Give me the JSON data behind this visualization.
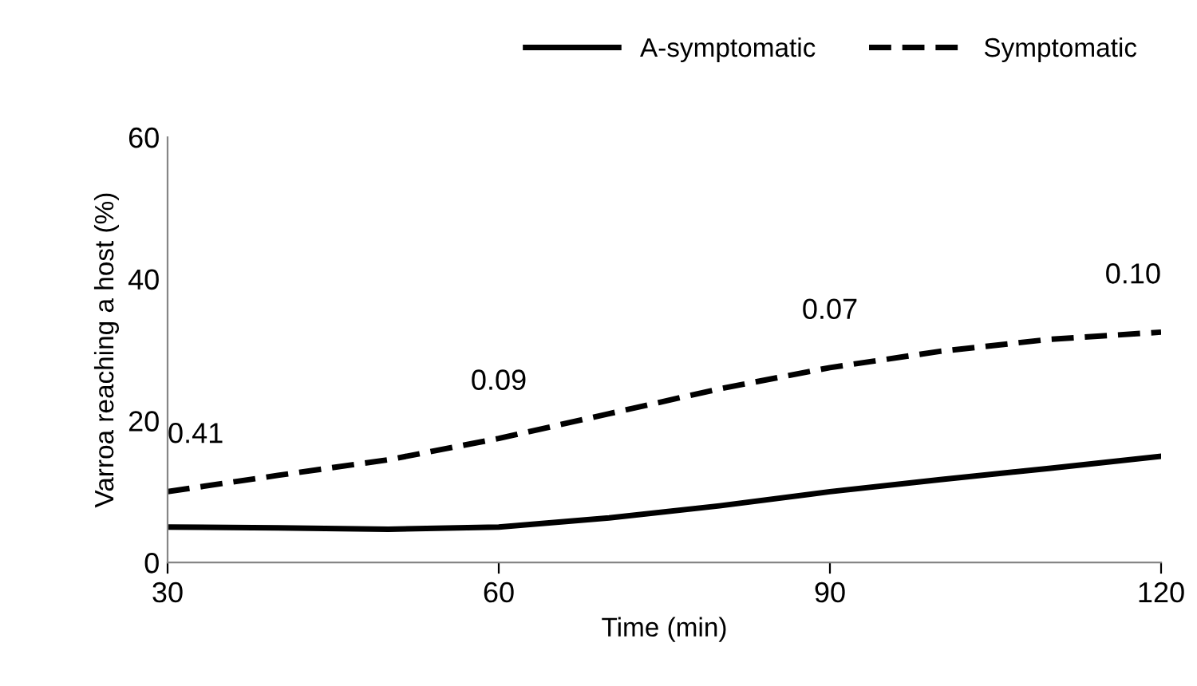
{
  "chart_data": {
    "type": "line",
    "xlabel": "Time (min)",
    "ylabel": "Varroa reaching a host (%)",
    "x": [
      30,
      40,
      50,
      60,
      70,
      80,
      90,
      100,
      110,
      120
    ],
    "series": [
      {
        "name": "A-symptomatic",
        "color": "#000000",
        "line_style": "solid",
        "values": [
          5,
          4.9,
          4.7,
          5,
          6.3,
          8,
          10,
          11.7,
          13.3,
          15
        ]
      },
      {
        "name": "Symptomatic",
        "color": "#000000",
        "line_style": "dashed",
        "values": [
          10,
          12.3,
          14.5,
          17.5,
          21,
          24.5,
          27.5,
          29.8,
          31.5,
          32.5
        ]
      }
    ],
    "annotations": [
      {
        "text": "0.41",
        "x": 30,
        "y": 10
      },
      {
        "text": "0.09",
        "x": 60,
        "y": 17.5
      },
      {
        "text": "0.07",
        "x": 90,
        "y": 27.5
      },
      {
        "text": "0.10",
        "x": 120,
        "y": 32.5
      }
    ],
    "xlim": [
      30,
      120
    ],
    "xticks": [
      30,
      60,
      90,
      120
    ],
    "ylim": [
      0,
      60
    ],
    "yticks": [
      0,
      20,
      40,
      60
    ],
    "grid": false,
    "legend": "top right",
    "marker": "none"
  }
}
